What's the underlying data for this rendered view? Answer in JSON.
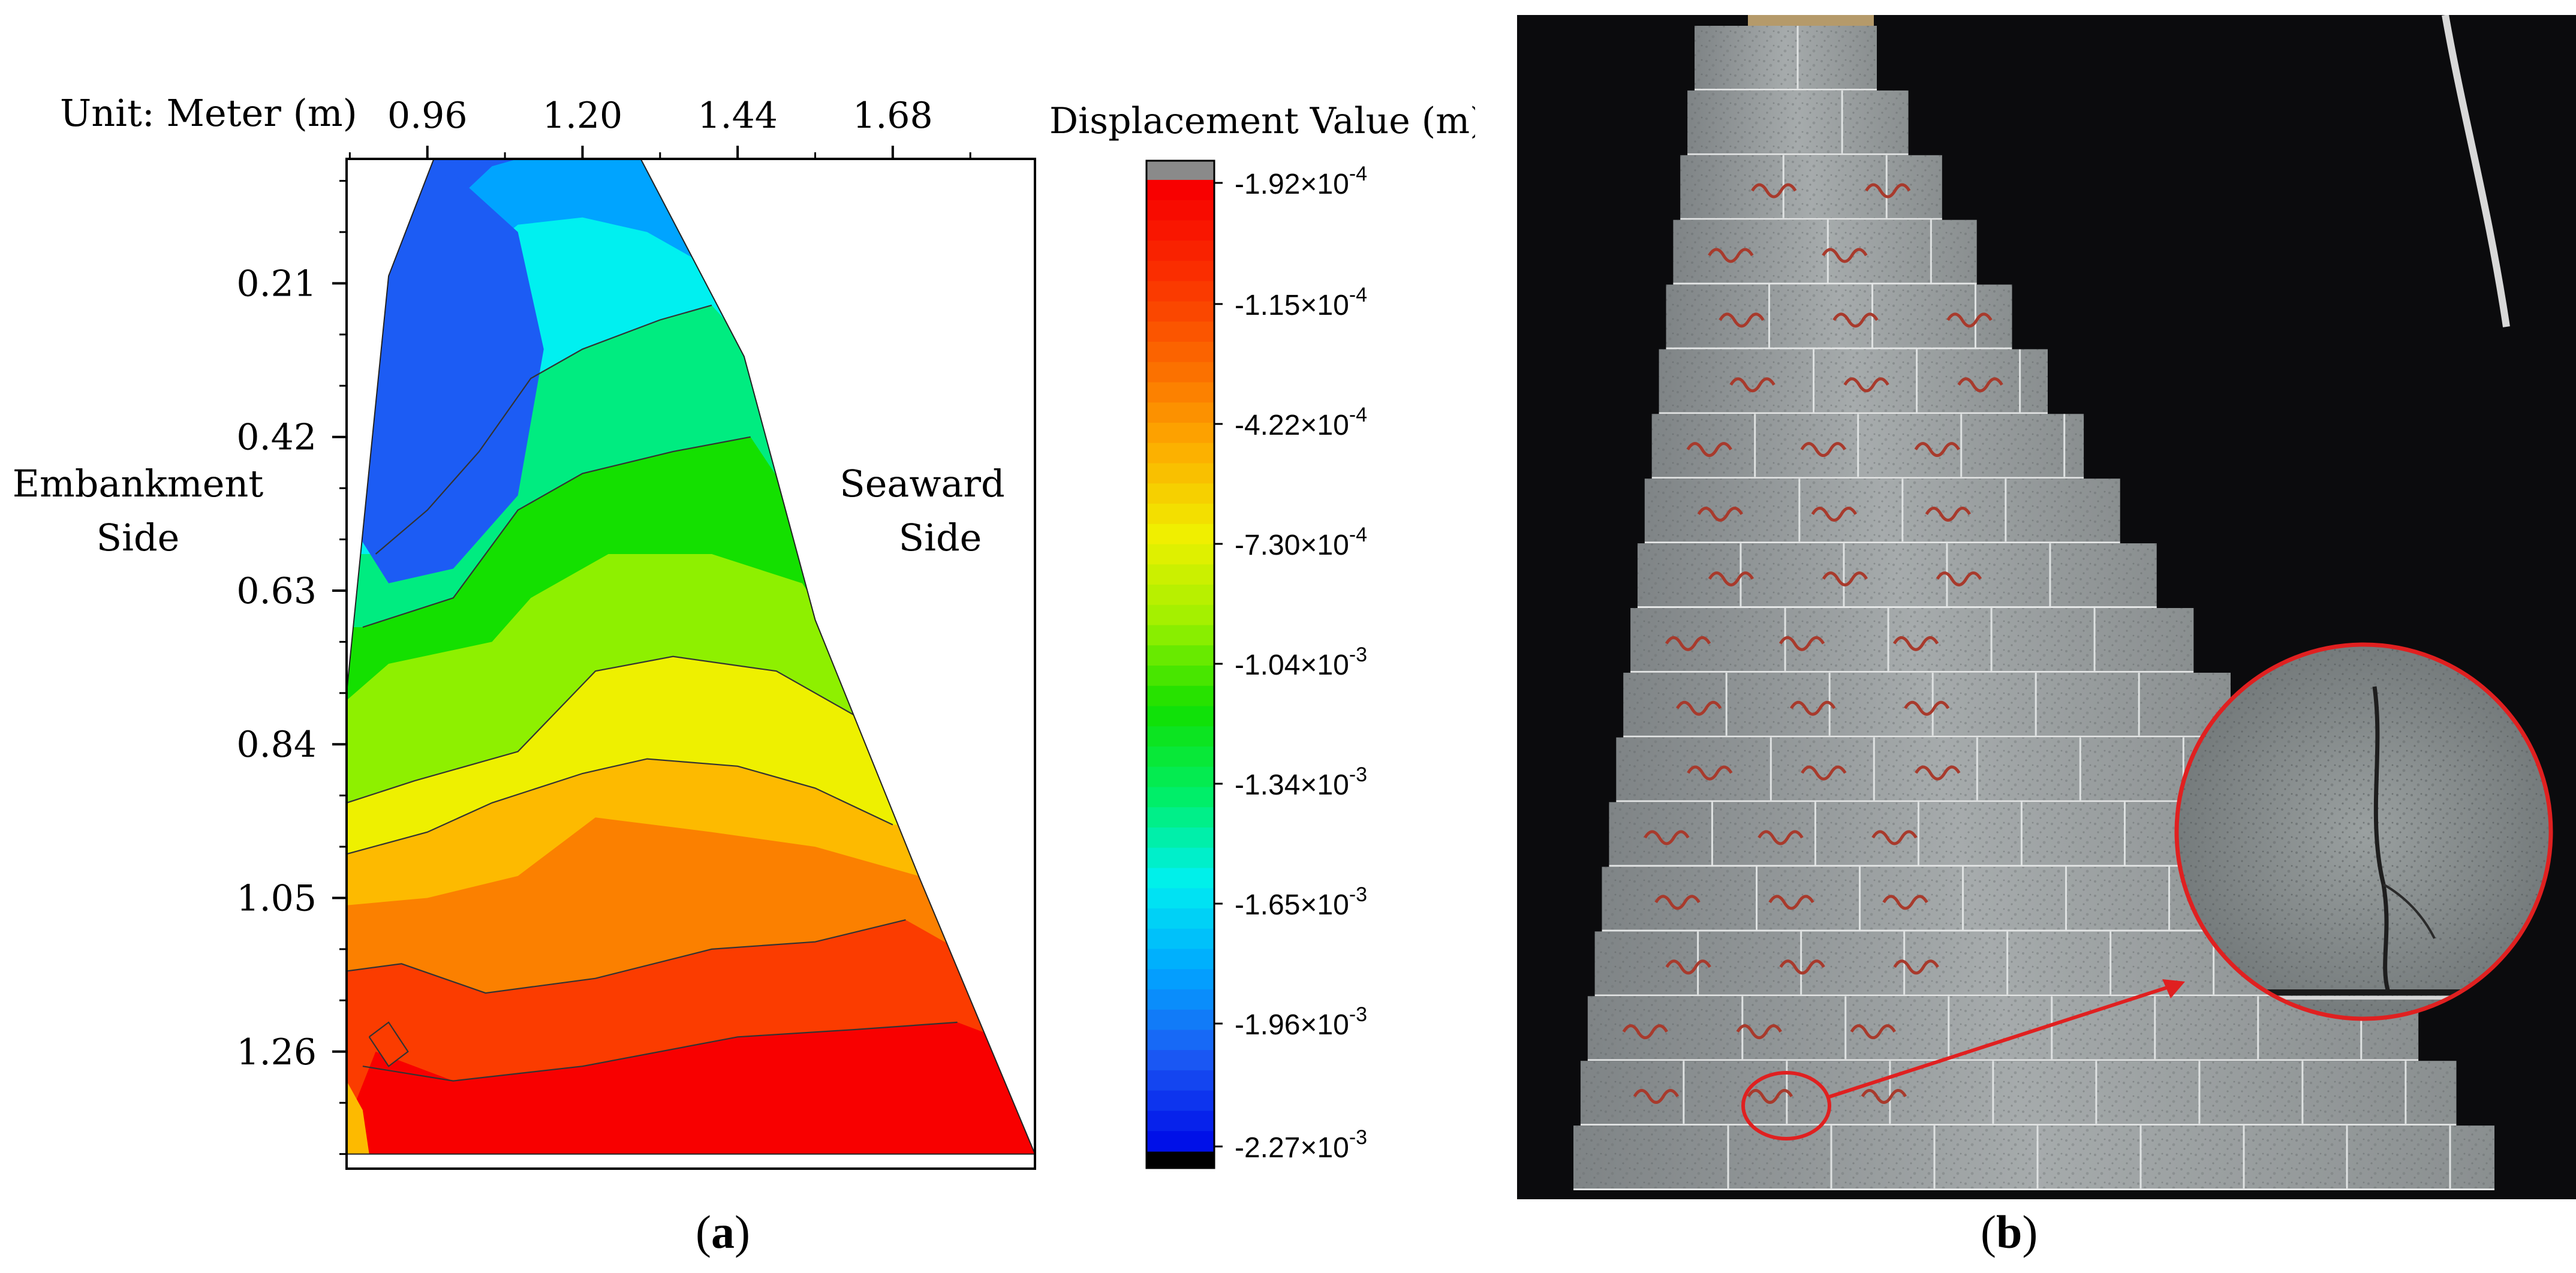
{
  "panels": {
    "a": {
      "caption_open": "(",
      "caption_letter": "a",
      "caption_close": ")"
    },
    "b": {
      "caption_open": "(",
      "caption_letter": "b",
      "caption_close": ")"
    }
  },
  "chart_data": {
    "type": "heatmap",
    "unit_label": "Unit: Meter (m)",
    "colorbar_title": "Displacement Value (m)",
    "x_ticks": [
      "0.96",
      "1.20",
      "1.44",
      "1.68"
    ],
    "x_tick_values": [
      0.96,
      1.2,
      1.44,
      1.68
    ],
    "xlim": [
      0.835,
      1.9
    ],
    "y_ticks": [
      "0.21",
      "0.42",
      "0.63",
      "0.84",
      "1.05",
      "1.26"
    ],
    "y_tick_values": [
      0.21,
      0.42,
      0.63,
      0.84,
      1.05,
      1.26
    ],
    "ylim": [
      0.04,
      1.42
    ],
    "y_inverted": true,
    "x_axis_position": "top",
    "annotations": {
      "left_line1": "Embankment",
      "left_line2": "Side",
      "right_line1": "Seaward",
      "right_line2": "Side"
    },
    "colorbar_labels": [
      {
        "mantissa": "-1.92",
        "exp": "-4"
      },
      {
        "mantissa": "-1.15",
        "exp": "-4"
      },
      {
        "mantissa": "-4.22",
        "exp": "-4"
      },
      {
        "mantissa": "-7.30",
        "exp": "-4"
      },
      {
        "mantissa": "-1.04",
        "exp": "-3"
      },
      {
        "mantissa": "-1.34",
        "exp": "-3"
      },
      {
        "mantissa": "-1.65",
        "exp": "-3"
      },
      {
        "mantissa": "-1.96",
        "exp": "-3"
      },
      {
        "mantissa": "-2.27",
        "exp": "-3"
      }
    ],
    "colorbar_stops": [
      "#f80000",
      "#fa3000",
      "#fb6a00",
      "#fdae00",
      "#f0f000",
      "#9ef000",
      "#12e000",
      "#00ee66",
      "#00f0f0",
      "#00a8ff",
      "#1c5cf4",
      "#0010e8"
    ],
    "domain_outline": [
      [
        0.835,
        1.4
      ],
      [
        0.835,
        0.77
      ],
      [
        0.9,
        0.2
      ],
      [
        0.97,
        0.04
      ],
      [
        1.29,
        0.04
      ],
      [
        1.45,
        0.31
      ],
      [
        1.56,
        0.67
      ],
      [
        1.72,
        1.02
      ],
      [
        1.9,
        1.4
      ]
    ],
    "bands": [
      {
        "value": -0.00019,
        "color": "#f80000",
        "boundary": null
      },
      {
        "value": -0.00012,
        "color": "#fb3c00",
        "boundary": [
          [
            0.835,
            1.36
          ],
          [
            0.88,
            1.26
          ],
          [
            1.0,
            1.3
          ],
          [
            1.2,
            1.28
          ],
          [
            1.44,
            1.24
          ],
          [
            1.62,
            1.23
          ],
          [
            1.78,
            1.22
          ],
          [
            1.9,
            1.26
          ]
        ]
      },
      {
        "value": -0.00027,
        "color": "#fb8000",
        "boundary": [
          [
            0.835,
            1.15
          ],
          [
            0.92,
            1.14
          ],
          [
            1.05,
            1.18
          ],
          [
            1.22,
            1.16
          ],
          [
            1.4,
            1.12
          ],
          [
            1.56,
            1.11
          ],
          [
            1.7,
            1.08
          ],
          [
            1.8,
            1.13
          ]
        ]
      },
      {
        "value": -0.00042,
        "color": "#fdba00",
        "boundary": [
          [
            0.835,
            1.06
          ],
          [
            0.96,
            1.05
          ],
          [
            1.1,
            1.02
          ],
          [
            1.22,
            0.94
          ],
          [
            1.4,
            0.96
          ],
          [
            1.56,
            0.98
          ],
          [
            1.72,
            1.02
          ]
        ]
      },
      {
        "value": -0.00058,
        "color": "#eef000",
        "boundary": [
          [
            0.835,
            0.99
          ],
          [
            0.96,
            0.96
          ],
          [
            1.06,
            0.92
          ],
          [
            1.2,
            0.88
          ],
          [
            1.3,
            0.86
          ],
          [
            1.44,
            0.87
          ],
          [
            1.56,
            0.9
          ],
          [
            1.68,
            0.95
          ]
        ]
      },
      {
        "value": -0.00073,
        "color": "#8ef000",
        "boundary": [
          [
            0.835,
            0.92
          ],
          [
            0.94,
            0.89
          ],
          [
            1.1,
            0.85
          ],
          [
            1.22,
            0.74
          ],
          [
            1.34,
            0.72
          ],
          [
            1.5,
            0.74
          ],
          [
            1.62,
            0.8
          ]
        ]
      },
      {
        "value": -0.00089,
        "color": "#14e000",
        "boundary": [
          [
            0.835,
            0.78
          ],
          [
            0.9,
            0.73
          ],
          [
            1.06,
            0.7
          ],
          [
            1.12,
            0.64
          ],
          [
            1.24,
            0.58
          ],
          [
            1.4,
            0.58
          ],
          [
            1.54,
            0.62
          ],
          [
            1.6,
            0.7
          ]
        ]
      },
      {
        "value": -0.00119,
        "color": "#00ec80",
        "boundary": [
          [
            0.86,
            0.68
          ],
          [
            1.0,
            0.64
          ],
          [
            1.1,
            0.52
          ],
          [
            1.2,
            0.47
          ],
          [
            1.34,
            0.44
          ],
          [
            1.46,
            0.42
          ],
          [
            1.52,
            0.5
          ]
        ]
      },
      {
        "value": -0.0015,
        "color": "#00f0f0",
        "boundary": [
          [
            0.88,
            0.58
          ],
          [
            0.96,
            0.52
          ],
          [
            1.04,
            0.44
          ],
          [
            1.12,
            0.34
          ],
          [
            1.2,
            0.3
          ],
          [
            1.32,
            0.26
          ],
          [
            1.4,
            0.24
          ],
          [
            1.46,
            0.3
          ]
        ]
      },
      {
        "value": -0.00173,
        "color": "#00a4ff",
        "boundary": [
          [
            0.92,
            0.3
          ],
          [
            1.0,
            0.2
          ],
          [
            1.1,
            0.13
          ],
          [
            1.2,
            0.12
          ],
          [
            1.3,
            0.14
          ],
          [
            1.38,
            0.18
          ],
          [
            1.44,
            0.26
          ]
        ]
      },
      {
        "value": -0.00196,
        "color": "#1c5cf4",
        "boundary": [
          [
            0.9,
            0.26
          ],
          [
            1.0,
            0.1
          ],
          [
            1.06,
            0.05
          ],
          [
            1.1,
            0.04
          ]
        ]
      }
    ],
    "blobs": [
      {
        "color": "#0010e8",
        "outline": [
          [
            0.855,
            0.26
          ],
          [
            0.9,
            0.12
          ],
          [
            0.98,
            0.1
          ],
          [
            1.04,
            0.18
          ],
          [
            1.06,
            0.32
          ],
          [
            1.03,
            0.46
          ],
          [
            0.96,
            0.52
          ],
          [
            0.88,
            0.5
          ],
          [
            0.855,
            0.4
          ]
        ]
      },
      {
        "color": "#1c5cf4",
        "outline": [
          [
            0.85,
            0.24
          ],
          [
            0.9,
            0.08
          ],
          [
            1.0,
            0.06
          ],
          [
            1.1,
            0.14
          ],
          [
            1.14,
            0.3
          ],
          [
            1.1,
            0.5
          ],
          [
            1.0,
            0.6
          ],
          [
            0.9,
            0.62
          ],
          [
            0.85,
            0.55
          ]
        ]
      },
      {
        "color": "#fb3c00",
        "outline": [
          [
            0.87,
            1.24
          ],
          [
            0.9,
            1.22
          ],
          [
            0.93,
            1.26
          ],
          [
            0.9,
            1.28
          ]
        ]
      },
      {
        "color": "#fdba00",
        "outline": [
          [
            0.835,
            1.4
          ],
          [
            0.835,
            1.3
          ],
          [
            0.86,
            1.34
          ],
          [
            0.87,
            1.4
          ]
        ]
      }
    ],
    "contours": [
      [
        [
          0.835,
          0.99
        ],
        [
          0.96,
          0.96
        ],
        [
          1.06,
          0.92
        ],
        [
          1.2,
          0.88
        ],
        [
          1.3,
          0.86
        ],
        [
          1.44,
          0.87
        ],
        [
          1.56,
          0.9
        ],
        [
          1.68,
          0.95
        ]
      ],
      [
        [
          0.835,
          0.92
        ],
        [
          0.94,
          0.89
        ],
        [
          1.1,
          0.85
        ],
        [
          1.22,
          0.74
        ],
        [
          1.34,
          0.72
        ],
        [
          1.5,
          0.74
        ],
        [
          1.62,
          0.8
        ]
      ],
      [
        [
          0.835,
          1.15
        ],
        [
          0.92,
          1.14
        ],
        [
          1.05,
          1.18
        ],
        [
          1.22,
          1.16
        ],
        [
          1.4,
          1.12
        ],
        [
          1.56,
          1.11
        ],
        [
          1.7,
          1.08
        ]
      ],
      [
        [
          0.86,
          0.68
        ],
        [
          1.0,
          0.64
        ],
        [
          1.1,
          0.52
        ],
        [
          1.2,
          0.47
        ],
        [
          1.34,
          0.44
        ],
        [
          1.46,
          0.42
        ]
      ],
      [
        [
          0.88,
          0.58
        ],
        [
          0.96,
          0.52
        ],
        [
          1.04,
          0.44
        ],
        [
          1.12,
          0.34
        ],
        [
          1.2,
          0.3
        ],
        [
          1.32,
          0.26
        ],
        [
          1.4,
          0.24
        ]
      ],
      [
        [
          0.86,
          1.28
        ],
        [
          1.0,
          1.3
        ],
        [
          1.2,
          1.28
        ],
        [
          1.44,
          1.24
        ],
        [
          1.62,
          1.23
        ],
        [
          1.78,
          1.22
        ]
      ],
      [
        [
          0.87,
          1.24
        ],
        [
          0.9,
          1.22
        ],
        [
          0.93,
          1.26
        ],
        [
          0.9,
          1.28
        ],
        [
          0.87,
          1.24
        ]
      ]
    ]
  }
}
